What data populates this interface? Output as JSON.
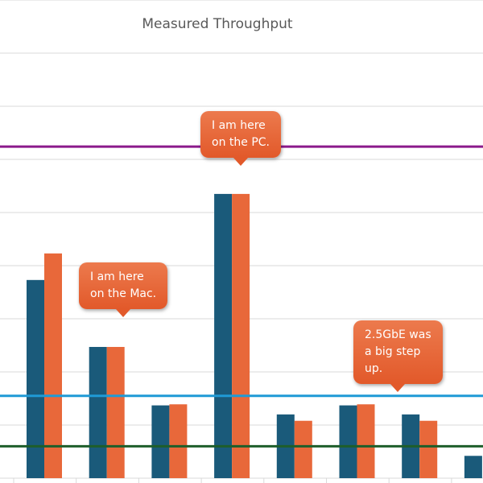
{
  "chart_data": {
    "type": "bar",
    "title": "Measured Throughput",
    "xlabel": "",
    "ylabel": "",
    "ylim": [
      0,
      9
    ],
    "grid": true,
    "categories": [
      "",
      "",
      "",
      "",
      "",
      "",
      "",
      ""
    ],
    "series": [
      {
        "color": "#1a5a7a",
        "values": [
          3.73,
          2.47,
          1.37,
          5.35,
          1.2,
          1.37,
          1.2,
          0.42
        ]
      },
      {
        "color": "#e8683a",
        "values": [
          4.23,
          2.47,
          1.39,
          5.35,
          1.08,
          1.39,
          1.08,
          null
        ]
      }
    ],
    "reference_lines": [
      {
        "value": 6.24,
        "color": "#8b1a8b"
      },
      {
        "value": 1.55,
        "color": "#1f9ad6"
      },
      {
        "value": 0.6,
        "color": "#1e5e2a"
      }
    ],
    "annotations": [
      {
        "text": "I am here\non the Mac.",
        "category_index": 1
      },
      {
        "text": "I am here\non the PC.",
        "category_index": 3
      },
      {
        "text": "2.5GbE was\na big step\nup.",
        "category_index": 5
      }
    ]
  }
}
